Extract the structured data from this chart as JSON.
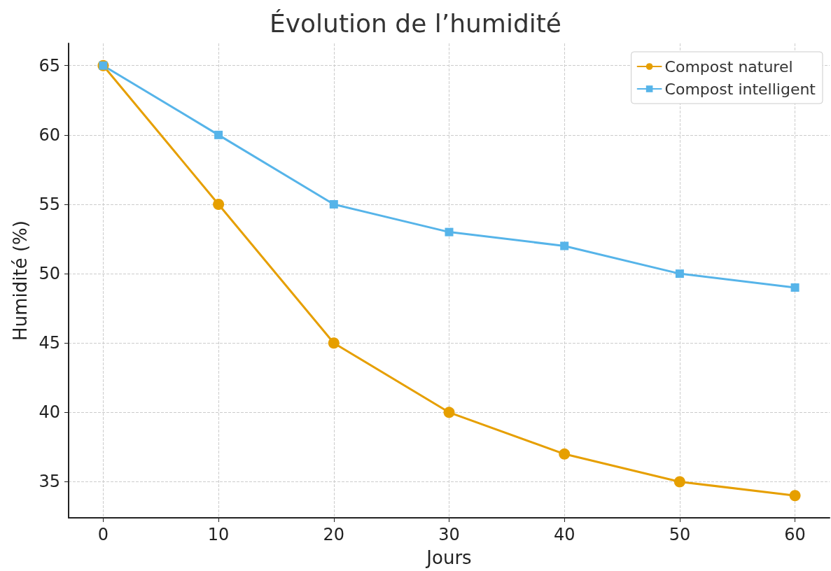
{
  "chart_data": {
    "type": "line",
    "title": "Évolution de l’humidité",
    "xlabel": "Jours",
    "ylabel": "Humidité (%)",
    "x": [
      0,
      10,
      20,
      30,
      40,
      50,
      60
    ],
    "series": [
      {
        "name": "Compost naturel",
        "color": "#e69f00",
        "marker": "circle",
        "values": [
          65,
          55,
          45,
          40,
          37,
          35,
          34
        ]
      },
      {
        "name": "Compost intelligent",
        "color": "#56b4e9",
        "marker": "square",
        "values": [
          65,
          60,
          55,
          53,
          52,
          50,
          49
        ]
      }
    ],
    "xlim": [
      -3,
      63
    ],
    "ylim": [
      32.4,
      66.6
    ],
    "xticks": [
      0,
      10,
      20,
      30,
      40,
      50,
      60
    ],
    "yticks": [
      35,
      40,
      45,
      50,
      55,
      60,
      65
    ],
    "grid": true,
    "legend": "top right",
    "line_style": "solid"
  }
}
